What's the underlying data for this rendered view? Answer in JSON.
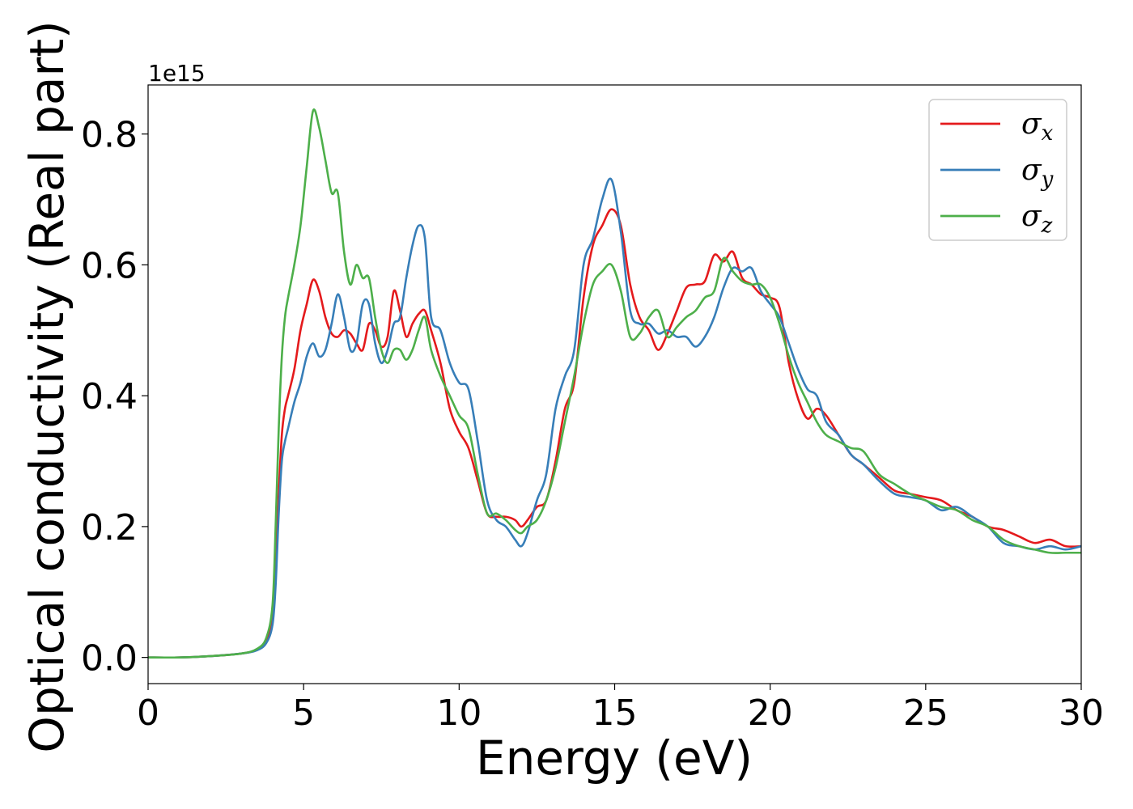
{
  "chart_data": {
    "type": "line",
    "title": "",
    "xlabel": "Energy (eV)",
    "ylabel": "Optical conductivity (Real part)",
    "y_offset_text": "1e15",
    "xlim": [
      0,
      30
    ],
    "ylim": [
      -0.04,
      0.875
    ],
    "xticks": [
      0,
      5,
      10,
      15,
      20,
      25,
      30
    ],
    "xtick_labels": [
      "0",
      "5",
      "10",
      "15",
      "20",
      "25",
      "30"
    ],
    "yticks": [
      0.0,
      0.2,
      0.4,
      0.6,
      0.8
    ],
    "ytick_labels": [
      "0.0",
      "0.2",
      "0.4",
      "0.6",
      "0.8"
    ],
    "grid": false,
    "legend_position": "top-right",
    "series": [
      {
        "name": "σx",
        "label_base": "σ",
        "label_sub": "x",
        "color": "#e41a1c",
        "x": [
          0,
          1,
          2,
          3,
          3.5,
          3.8,
          4.0,
          4.1,
          4.2,
          4.3,
          4.4,
          4.5,
          4.7,
          4.9,
          5.1,
          5.3,
          5.5,
          5.7,
          5.9,
          6.1,
          6.3,
          6.5,
          6.7,
          6.9,
          7.1,
          7.3,
          7.5,
          7.7,
          7.9,
          8.1,
          8.3,
          8.5,
          8.7,
          8.9,
          9.1,
          9.4,
          9.7,
          10.0,
          10.3,
          10.6,
          10.9,
          11.2,
          11.5,
          11.8,
          12.0,
          12.2,
          12.5,
          12.8,
          13.1,
          13.4,
          13.7,
          14.0,
          14.3,
          14.6,
          14.9,
          15.2,
          15.5,
          15.8,
          16.1,
          16.4,
          16.7,
          17.0,
          17.3,
          17.6,
          17.9,
          18.2,
          18.5,
          18.8,
          19.1,
          19.4,
          19.7,
          20.0,
          20.3,
          20.6,
          20.9,
          21.2,
          21.5,
          21.8,
          22.2,
          22.6,
          23.0,
          23.5,
          24.0,
          24.5,
          25.0,
          25.5,
          26.0,
          26.5,
          27.0,
          27.5,
          28.0,
          28.5,
          29.0,
          29.5,
          30.0
        ],
        "y": [
          0,
          0,
          0.002,
          0.006,
          0.012,
          0.025,
          0.06,
          0.13,
          0.25,
          0.34,
          0.38,
          0.4,
          0.44,
          0.5,
          0.54,
          0.577,
          0.56,
          0.52,
          0.495,
          0.49,
          0.5,
          0.495,
          0.48,
          0.47,
          0.51,
          0.5,
          0.475,
          0.49,
          0.56,
          0.53,
          0.49,
          0.51,
          0.525,
          0.53,
          0.5,
          0.45,
          0.38,
          0.345,
          0.32,
          0.27,
          0.22,
          0.215,
          0.215,
          0.21,
          0.2,
          0.21,
          0.23,
          0.24,
          0.3,
          0.38,
          0.42,
          0.55,
          0.63,
          0.66,
          0.685,
          0.66,
          0.57,
          0.52,
          0.5,
          0.47,
          0.495,
          0.53,
          0.565,
          0.57,
          0.575,
          0.615,
          0.605,
          0.62,
          0.58,
          0.57,
          0.555,
          0.55,
          0.535,
          0.45,
          0.395,
          0.365,
          0.38,
          0.37,
          0.34,
          0.31,
          0.295,
          0.275,
          0.255,
          0.25,
          0.245,
          0.24,
          0.225,
          0.215,
          0.2,
          0.195,
          0.185,
          0.175,
          0.18,
          0.17,
          0.17
        ]
      },
      {
        "name": "σy",
        "label_base": "σ",
        "label_sub": "y",
        "color": "#377eb8",
        "x": [
          0,
          1,
          2,
          3,
          3.5,
          3.8,
          4.0,
          4.1,
          4.2,
          4.3,
          4.4,
          4.5,
          4.7,
          4.9,
          5.1,
          5.3,
          5.5,
          5.7,
          5.9,
          6.1,
          6.3,
          6.5,
          6.7,
          6.9,
          7.1,
          7.3,
          7.5,
          7.7,
          7.9,
          8.1,
          8.3,
          8.5,
          8.7,
          8.9,
          9.1,
          9.4,
          9.7,
          10.0,
          10.3,
          10.6,
          10.9,
          11.2,
          11.5,
          11.8,
          12.0,
          12.2,
          12.5,
          12.8,
          13.1,
          13.4,
          13.7,
          14.0,
          14.3,
          14.6,
          14.9,
          15.2,
          15.5,
          15.8,
          16.1,
          16.4,
          16.7,
          17.0,
          17.3,
          17.6,
          17.9,
          18.2,
          18.5,
          18.8,
          19.1,
          19.4,
          19.7,
          20.0,
          20.3,
          20.6,
          20.9,
          21.2,
          21.5,
          21.8,
          22.2,
          22.6,
          23.0,
          23.5,
          24.0,
          24.5,
          25.0,
          25.5,
          26.0,
          26.5,
          27.0,
          27.5,
          28.0,
          28.5,
          29.0,
          29.5,
          30.0
        ],
        "y": [
          0,
          0,
          0.002,
          0.006,
          0.011,
          0.022,
          0.05,
          0.11,
          0.22,
          0.3,
          0.33,
          0.35,
          0.39,
          0.42,
          0.46,
          0.48,
          0.46,
          0.47,
          0.51,
          0.555,
          0.52,
          0.47,
          0.48,
          0.54,
          0.54,
          0.48,
          0.45,
          0.47,
          0.51,
          0.52,
          0.58,
          0.63,
          0.66,
          0.64,
          0.52,
          0.5,
          0.45,
          0.42,
          0.41,
          0.33,
          0.24,
          0.21,
          0.2,
          0.18,
          0.17,
          0.19,
          0.24,
          0.28,
          0.38,
          0.43,
          0.47,
          0.6,
          0.64,
          0.7,
          0.73,
          0.65,
          0.53,
          0.51,
          0.51,
          0.495,
          0.5,
          0.49,
          0.49,
          0.475,
          0.49,
          0.52,
          0.565,
          0.595,
          0.59,
          0.595,
          0.56,
          0.54,
          0.52,
          0.48,
          0.44,
          0.41,
          0.4,
          0.36,
          0.34,
          0.31,
          0.295,
          0.27,
          0.25,
          0.245,
          0.24,
          0.225,
          0.23,
          0.215,
          0.2,
          0.175,
          0.17,
          0.165,
          0.17,
          0.165,
          0.17
        ]
      },
      {
        "name": "σz",
        "label_base": "σ",
        "label_sub": "z",
        "color": "#4daf4a",
        "x": [
          0,
          1,
          2,
          3,
          3.5,
          3.8,
          4.0,
          4.1,
          4.2,
          4.3,
          4.4,
          4.5,
          4.7,
          4.9,
          5.1,
          5.3,
          5.5,
          5.7,
          5.9,
          6.1,
          6.3,
          6.5,
          6.7,
          6.9,
          7.1,
          7.3,
          7.5,
          7.7,
          7.9,
          8.1,
          8.3,
          8.5,
          8.7,
          8.9,
          9.1,
          9.4,
          9.7,
          10.0,
          10.3,
          10.6,
          10.9,
          11.2,
          11.5,
          11.8,
          12.0,
          12.2,
          12.5,
          12.8,
          13.1,
          13.4,
          13.7,
          14.0,
          14.3,
          14.6,
          14.9,
          15.2,
          15.5,
          15.8,
          16.1,
          16.4,
          16.7,
          17.0,
          17.3,
          17.6,
          17.9,
          18.2,
          18.5,
          18.8,
          19.1,
          19.4,
          19.7,
          20.0,
          20.3,
          20.6,
          20.9,
          21.2,
          21.5,
          21.8,
          22.2,
          22.6,
          23.0,
          23.5,
          24.0,
          24.5,
          25.0,
          25.5,
          26.0,
          26.5,
          27.0,
          27.5,
          28.0,
          28.5,
          29.0,
          29.5,
          30.0
        ],
        "y": [
          0,
          0,
          0.002,
          0.006,
          0.013,
          0.03,
          0.08,
          0.2,
          0.35,
          0.46,
          0.52,
          0.55,
          0.6,
          0.66,
          0.75,
          0.835,
          0.81,
          0.76,
          0.71,
          0.71,
          0.62,
          0.57,
          0.6,
          0.58,
          0.58,
          0.52,
          0.47,
          0.45,
          0.47,
          0.47,
          0.455,
          0.47,
          0.5,
          0.52,
          0.47,
          0.43,
          0.4,
          0.37,
          0.35,
          0.28,
          0.22,
          0.22,
          0.21,
          0.195,
          0.19,
          0.2,
          0.21,
          0.24,
          0.29,
          0.36,
          0.43,
          0.51,
          0.57,
          0.59,
          0.6,
          0.56,
          0.49,
          0.495,
          0.52,
          0.53,
          0.49,
          0.505,
          0.52,
          0.53,
          0.55,
          0.56,
          0.61,
          0.59,
          0.575,
          0.57,
          0.57,
          0.55,
          0.51,
          0.46,
          0.42,
          0.39,
          0.36,
          0.34,
          0.33,
          0.32,
          0.315,
          0.28,
          0.265,
          0.25,
          0.24,
          0.23,
          0.225,
          0.21,
          0.2,
          0.18,
          0.17,
          0.165,
          0.16,
          0.16,
          0.16
        ]
      }
    ]
  }
}
